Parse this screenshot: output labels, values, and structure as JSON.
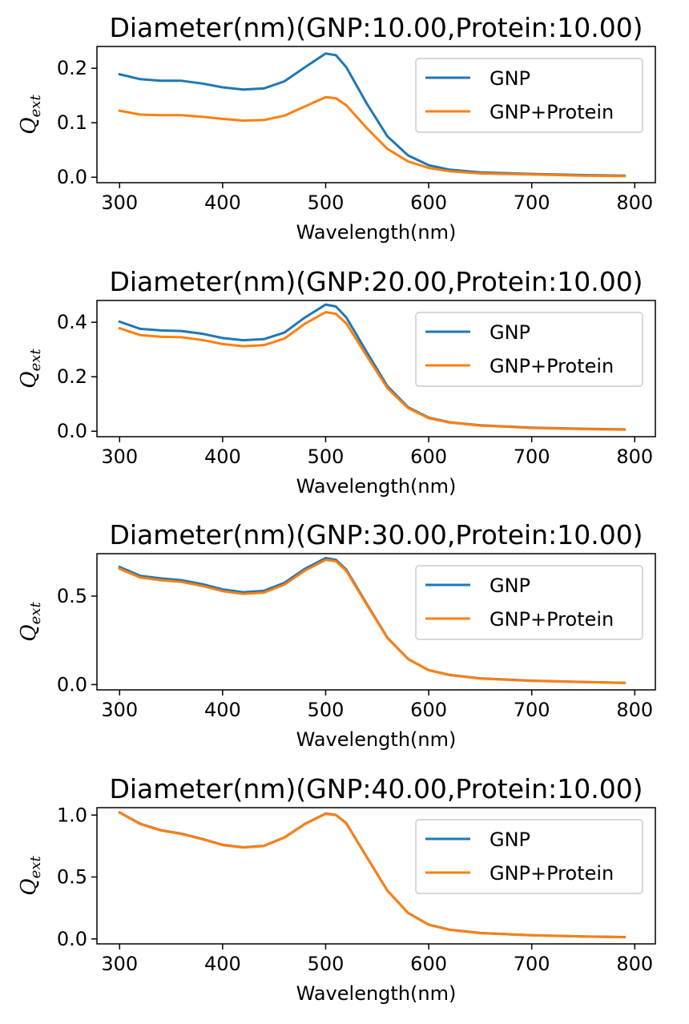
{
  "chart_data": [
    {
      "type": "line",
      "title": "Diameter(nm)(GNP:10.00,Protein:10.00)",
      "xlabel": "Wavelength(nm)",
      "ylabel": {
        "base": "Q",
        "subscript": "ext"
      },
      "xlim": [
        278,
        820
      ],
      "ylim": [
        -0.01,
        0.24
      ],
      "xticks": [
        300,
        400,
        500,
        600,
        700,
        800
      ],
      "yticks": [
        0.0,
        0.1,
        0.2
      ],
      "ytick_labels": [
        "0.0",
        "0.1",
        "0.2"
      ],
      "legend_position": "upper right",
      "x": [
        300,
        320,
        340,
        360,
        380,
        400,
        420,
        440,
        460,
        480,
        500,
        510,
        520,
        540,
        560,
        580,
        600,
        620,
        650,
        700,
        750,
        790
      ],
      "series": [
        {
          "name": "GNP",
          "color": "#1f77b4",
          "values": [
            0.189,
            0.18,
            0.177,
            0.177,
            0.172,
            0.165,
            0.161,
            0.163,
            0.176,
            0.202,
            0.227,
            0.224,
            0.202,
            0.135,
            0.075,
            0.04,
            0.022,
            0.014,
            0.009,
            0.006,
            0.004,
            0.003
          ]
        },
        {
          "name": "GNP+Protein",
          "color": "#ff7f0e",
          "values": [
            0.122,
            0.115,
            0.114,
            0.114,
            0.111,
            0.107,
            0.104,
            0.105,
            0.113,
            0.13,
            0.147,
            0.145,
            0.132,
            0.09,
            0.052,
            0.029,
            0.017,
            0.011,
            0.007,
            0.005,
            0.003,
            0.002
          ]
        }
      ]
    },
    {
      "type": "line",
      "title": "Diameter(nm)(GNP:20.00,Protein:10.00)",
      "xlabel": "Wavelength(nm)",
      "ylabel": {
        "base": "Q",
        "subscript": "ext"
      },
      "xlim": [
        278,
        820
      ],
      "ylim": [
        -0.02,
        0.48
      ],
      "xticks": [
        300,
        400,
        500,
        600,
        700,
        800
      ],
      "yticks": [
        0.0,
        0.2,
        0.4
      ],
      "ytick_labels": [
        "0.0",
        "0.2",
        "0.4"
      ],
      "legend_position": "upper right",
      "x": [
        300,
        320,
        340,
        360,
        380,
        400,
        420,
        440,
        460,
        480,
        500,
        510,
        520,
        540,
        560,
        580,
        600,
        620,
        650,
        700,
        750,
        790
      ],
      "series": [
        {
          "name": "GNP",
          "color": "#1f77b4",
          "values": [
            0.402,
            0.376,
            0.37,
            0.368,
            0.358,
            0.342,
            0.334,
            0.338,
            0.362,
            0.418,
            0.465,
            0.458,
            0.418,
            0.29,
            0.165,
            0.088,
            0.05,
            0.033,
            0.022,
            0.013,
            0.009,
            0.007
          ]
        },
        {
          "name": "GNP+Protein",
          "color": "#ff7f0e",
          "values": [
            0.378,
            0.353,
            0.347,
            0.345,
            0.335,
            0.32,
            0.312,
            0.316,
            0.34,
            0.395,
            0.437,
            0.431,
            0.396,
            0.276,
            0.158,
            0.085,
            0.048,
            0.032,
            0.021,
            0.012,
            0.008,
            0.006
          ]
        }
      ]
    },
    {
      "type": "line",
      "title": "Diameter(nm)(GNP:30.00,Protein:10.00)",
      "xlabel": "Wavelength(nm)",
      "ylabel": {
        "base": "Q",
        "subscript": "ext"
      },
      "xlim": [
        278,
        820
      ],
      "ylim": [
        -0.03,
        0.74
      ],
      "xticks": [
        300,
        400,
        500,
        600,
        700,
        800
      ],
      "yticks": [
        0.0,
        0.5
      ],
      "ytick_labels": [
        "0.0",
        "0.5"
      ],
      "legend_position": "upper right",
      "x": [
        300,
        320,
        340,
        360,
        380,
        400,
        420,
        440,
        460,
        480,
        500,
        510,
        520,
        540,
        560,
        580,
        600,
        620,
        650,
        700,
        750,
        790
      ],
      "series": [
        {
          "name": "GNP",
          "color": "#1f77b4",
          "values": [
            0.665,
            0.615,
            0.6,
            0.59,
            0.568,
            0.538,
            0.522,
            0.53,
            0.575,
            0.655,
            0.715,
            0.705,
            0.65,
            0.455,
            0.265,
            0.145,
            0.082,
            0.055,
            0.035,
            0.022,
            0.015,
            0.01
          ]
        },
        {
          "name": "GNP+Protein",
          "color": "#ff7f0e",
          "values": [
            0.655,
            0.605,
            0.59,
            0.58,
            0.558,
            0.528,
            0.512,
            0.52,
            0.565,
            0.645,
            0.705,
            0.697,
            0.643,
            0.451,
            0.263,
            0.144,
            0.081,
            0.054,
            0.034,
            0.021,
            0.014,
            0.009
          ]
        }
      ]
    },
    {
      "type": "line",
      "title": "Diameter(nm)(GNP:40.00,Protein:10.00)",
      "xlabel": "Wavelength(nm)",
      "ylabel": {
        "base": "Q",
        "subscript": "ext"
      },
      "xlim": [
        278,
        820
      ],
      "ylim": [
        -0.04,
        1.06
      ],
      "xticks": [
        300,
        400,
        500,
        600,
        700,
        800
      ],
      "yticks": [
        0.0,
        0.5,
        1.0
      ],
      "ytick_labels": [
        "0.0",
        "0.5",
        "1.0"
      ],
      "legend_position": "upper right",
      "x": [
        300,
        320,
        340,
        360,
        380,
        400,
        420,
        440,
        460,
        480,
        500,
        510,
        520,
        540,
        560,
        580,
        600,
        620,
        650,
        700,
        750,
        790
      ],
      "series": [
        {
          "name": "GNP",
          "color": "#1f77b4",
          "values": [
            1.022,
            0.93,
            0.878,
            0.85,
            0.808,
            0.76,
            0.74,
            0.752,
            0.82,
            0.93,
            1.012,
            1.002,
            0.935,
            0.66,
            0.39,
            0.21,
            0.115,
            0.075,
            0.048,
            0.03,
            0.02,
            0.015
          ]
        },
        {
          "name": "GNP+Protein",
          "color": "#ff7f0e",
          "values": [
            1.02,
            0.928,
            0.876,
            0.848,
            0.806,
            0.758,
            0.738,
            0.75,
            0.818,
            0.928,
            1.01,
            1.0,
            0.933,
            0.659,
            0.389,
            0.209,
            0.114,
            0.074,
            0.047,
            0.029,
            0.019,
            0.014
          ]
        }
      ]
    }
  ]
}
